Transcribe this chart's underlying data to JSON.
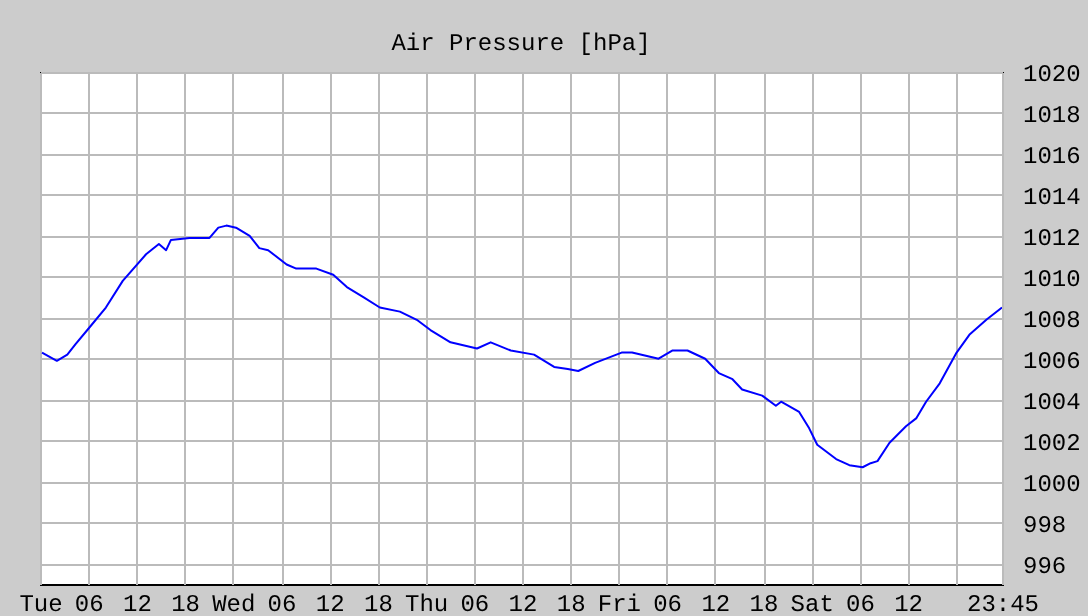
{
  "chart_data": {
    "type": "line",
    "title": "Air Pressure [hPa]",
    "x": [
      "--01-02T00:15",
      "--01-02T02:06",
      "--01-02T03:24",
      "--01-02T04:24",
      "--01-02T06:06",
      "--01-02T08:12",
      "--01-02T10:18",
      "--01-02T13:12",
      "--01-02T14:48",
      "--01-02T15:42",
      "--01-02T16:18",
      "--01-02T18:36",
      "--01-02T21:06",
      "--01-02T22:12",
      "--01-02T23:12",
      "--01-03T00:24",
      "--01-03T02:06",
      "--01-03T03:18",
      "--01-03T04:24",
      "--01-03T06:42",
      "--01-03T07:54",
      "--01-03T10:24",
      "--01-03T12:30",
      "--01-03T14:12",
      "--01-03T16:18",
      "--01-03T18:18",
      "--01-03T20:48",
      "--01-03T22:54",
      "--01-04T00:36",
      "--01-04T03:06",
      "--01-04T06:24",
      "--01-04T08:06",
      "--01-04T10:36",
      "--01-04T13:30",
      "--01-04T16:00",
      "--01-04T17:42",
      "--01-04T19:00",
      "--01-04T21:06",
      "--01-05T00:24",
      "--01-05T01:42",
      "--01-05T05:00",
      "--01-05T06:42",
      "--01-05T08:36",
      "--01-05T10:48",
      "--01-05T12:30",
      "--01-05T14:12",
      "--01-05T15:24",
      "--01-05T17:54",
      "--01-05T19:36",
      "--01-05T20:15",
      "--01-05T22:30",
      "--01-05T23:45",
      "--01-06T00:45",
      "--01-06T03:06",
      "--01-06T04:45",
      "--01-06T06:24",
      "--01-06T07:24",
      "--01-06T08:15",
      "--01-06T09:45",
      "--01-06T11:48",
      "--01-06T13:06",
      "--01-06T14:18",
      "--01-06T16:00",
      "--01-06T18:06",
      "--01-06T19:45",
      "--01-06T21:48",
      "--01-06T23:45"
    ],
    "series": [
      {
        "color": "#0000ff",
        "values": [
          1006.3,
          1005.9,
          1006.2,
          1006.7,
          1007.5,
          1008.5,
          1009.8,
          1011.1,
          1011.6,
          1011.3,
          1011.8,
          1011.9,
          1011.9,
          1012.4,
          1012.5,
          1012.4,
          1012.0,
          1011.4,
          1011.3,
          1010.6,
          1010.4,
          1010.4,
          1010.1,
          1009.5,
          1009.0,
          1008.5,
          1008.3,
          1007.9,
          1007.4,
          1006.8,
          1006.5,
          1006.8,
          1006.4,
          1006.2,
          1005.6,
          1005.5,
          1005.4,
          1005.8,
          1006.3,
          1006.3,
          1006.0,
          1006.4,
          1006.4,
          1006.0,
          1005.3,
          1005.0,
          1004.5,
          1004.2,
          1003.7,
          1003.9,
          1003.4,
          1002.6,
          1001.8,
          1001.1,
          1000.8,
          1000.7,
          1000.9,
          1001.0,
          1001.9,
          1002.7,
          1003.1,
          1003.9,
          1004.8,
          1006.3,
          1007.2,
          1007.9,
          1008.5
        ]
      }
    ],
    "xlim": [
      "--01-02T00:00",
      "--01-06T23:45"
    ],
    "xticks": [
      {
        "value": "--01-02T00:00",
        "label": "Tue"
      },
      {
        "value": "--01-02T06:00",
        "label": "06"
      },
      {
        "value": "--01-02T12:00",
        "label": "12"
      },
      {
        "value": "--01-02T18:00",
        "label": "18"
      },
      {
        "value": "--01-03T00:00",
        "label": "Wed"
      },
      {
        "value": "--01-03T06:00",
        "label": "06"
      },
      {
        "value": "--01-03T12:00",
        "label": "12"
      },
      {
        "value": "--01-03T18:00",
        "label": "18"
      },
      {
        "value": "--01-04T00:00",
        "label": "Thu"
      },
      {
        "value": "--01-04T06:00",
        "label": "06"
      },
      {
        "value": "--01-04T12:00",
        "label": "12"
      },
      {
        "value": "--01-04T18:00",
        "label": "18"
      },
      {
        "value": "--01-05T00:00",
        "label": "Fri"
      },
      {
        "value": "--01-05T06:00",
        "label": "06"
      },
      {
        "value": "--01-05T12:00",
        "label": "12"
      },
      {
        "value": "--01-05T18:00",
        "label": "18"
      },
      {
        "value": "--01-06T00:00",
        "label": "Sat"
      },
      {
        "value": "--01-06T06:00",
        "label": "06"
      },
      {
        "value": "--01-06T12:00",
        "label": "12"
      },
      {
        "value": "--01-06T18:00",
        "label": null
      },
      {
        "value": "--01-06T23:45",
        "label": "23:45"
      }
    ],
    "ylim": [
      995,
      1020
    ],
    "yticks": [
      996,
      998,
      1000,
      1002,
      1004,
      1006,
      1008,
      1010,
      1012,
      1014,
      1016,
      1018,
      1020
    ],
    "grid": true,
    "line_style": "solid",
    "marker": "none"
  }
}
